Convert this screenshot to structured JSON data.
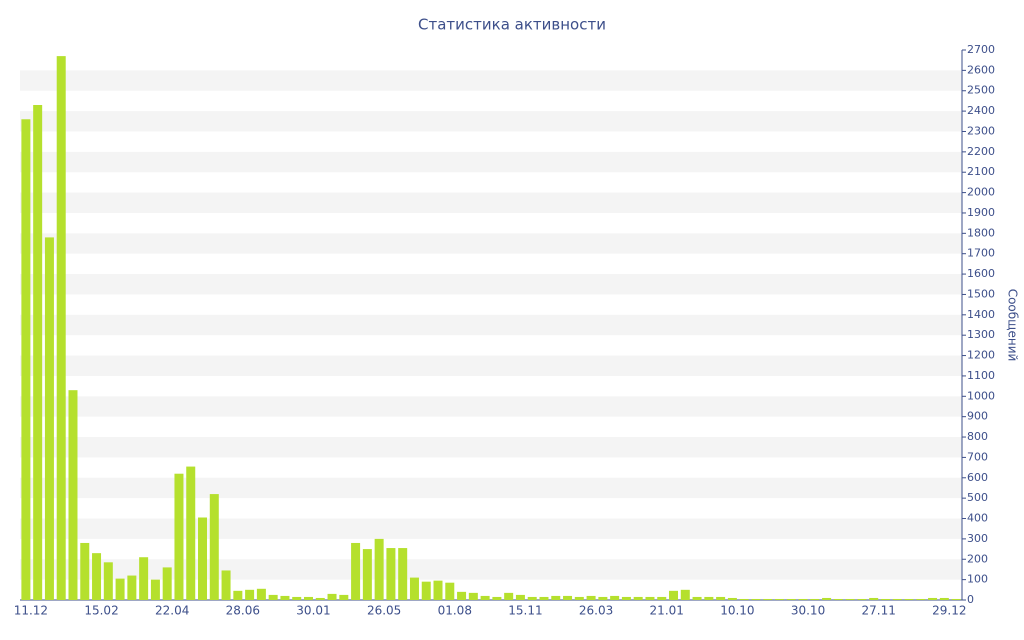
{
  "chart_data": {
    "type": "bar",
    "title": "Статистика активности",
    "y_axis_label": "Сообщений",
    "color": "#b5e02d",
    "grid": "bands",
    "categories": [
      "11.12",
      null,
      null,
      null,
      null,
      null,
      "15.02",
      null,
      null,
      null,
      null,
      null,
      "22.04",
      null,
      null,
      null,
      null,
      null,
      "28.06",
      null,
      null,
      null,
      null,
      null,
      "30.01",
      null,
      null,
      null,
      null,
      null,
      "26.05",
      null,
      null,
      null,
      null,
      null,
      "01.08",
      null,
      null,
      null,
      null,
      null,
      "15.11",
      null,
      null,
      null,
      null,
      null,
      "26.03",
      null,
      null,
      null,
      null,
      null,
      "21.01",
      null,
      null,
      null,
      null,
      null,
      "10.10",
      null,
      null,
      null,
      null,
      null,
      "30.10",
      null,
      null,
      null,
      null,
      null,
      "27.11",
      null,
      null,
      null,
      null,
      null,
      "29.12",
      null
    ],
    "values": [
      2360,
      2430,
      1780,
      2670,
      1030,
      280,
      230,
      185,
      105,
      120,
      210,
      100,
      160,
      620,
      655,
      405,
      520,
      145,
      45,
      50,
      55,
      25,
      20,
      15,
      15,
      10,
      30,
      25,
      280,
      250,
      300,
      255,
      255,
      110,
      90,
      95,
      85,
      40,
      35,
      20,
      15,
      35,
      25,
      15,
      15,
      20,
      20,
      15,
      20,
      15,
      20,
      15,
      15,
      15,
      15,
      45,
      50,
      15,
      15,
      15,
      10,
      5,
      5,
      5,
      5,
      5,
      5,
      5,
      10,
      5,
      5,
      5,
      10,
      5,
      5,
      5,
      5,
      10,
      10,
      5
    ],
    "ylim": [
      0,
      2700
    ],
    "yticks": [
      0,
      100,
      200,
      300,
      400,
      500,
      600,
      700,
      800,
      900,
      1000,
      1100,
      1200,
      1300,
      1400,
      1500,
      1600,
      1700,
      1800,
      1900,
      2000,
      2100,
      2200,
      2300,
      2400,
      2500,
      2600,
      2700
    ]
  }
}
